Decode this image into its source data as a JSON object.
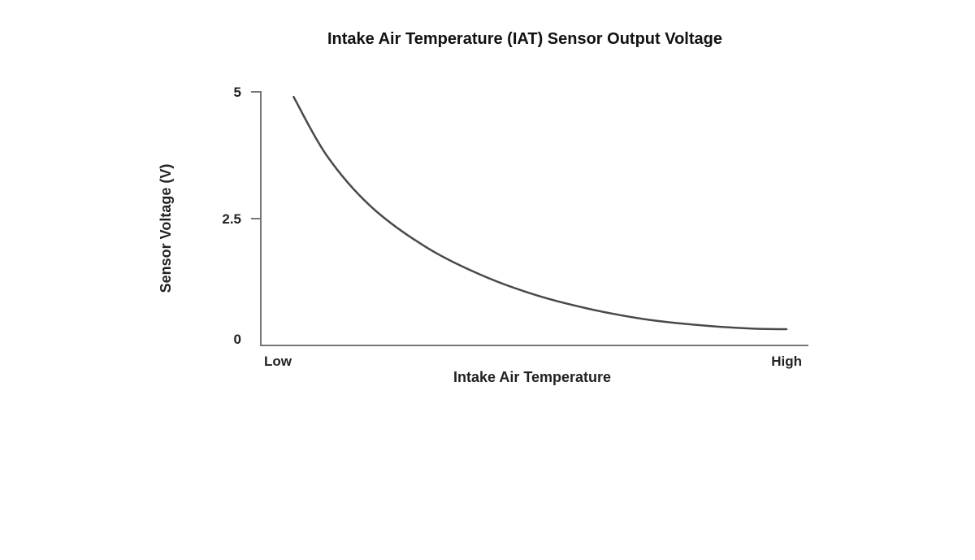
{
  "chart_data": {
    "type": "line",
    "title": "Intake Air Temperature (IAT) Sensor Output Voltage",
    "xlabel": "Intake Air Temperature",
    "ylabel": "Sensor Voltage (V)",
    "x_tick_labels": [
      "Low",
      "High"
    ],
    "y_ticks": [
      {
        "value": 0,
        "label": "0"
      },
      {
        "value": 2.5,
        "label": "2.5"
      },
      {
        "value": 5,
        "label": "5"
      }
    ],
    "xlim": [
      0,
      1
    ],
    "ylim": [
      0,
      5
    ],
    "grid": false,
    "series": [
      {
        "color": "#4a4a4a",
        "x": [
          0.06,
          0.12,
          0.2,
          0.3,
          0.4,
          0.5,
          0.6,
          0.7,
          0.8,
          0.9,
          0.96
        ],
        "values": [
          4.9,
          3.75,
          2.75,
          1.95,
          1.4,
          1.0,
          0.72,
          0.52,
          0.4,
          0.33,
          0.32
        ]
      }
    ]
  }
}
